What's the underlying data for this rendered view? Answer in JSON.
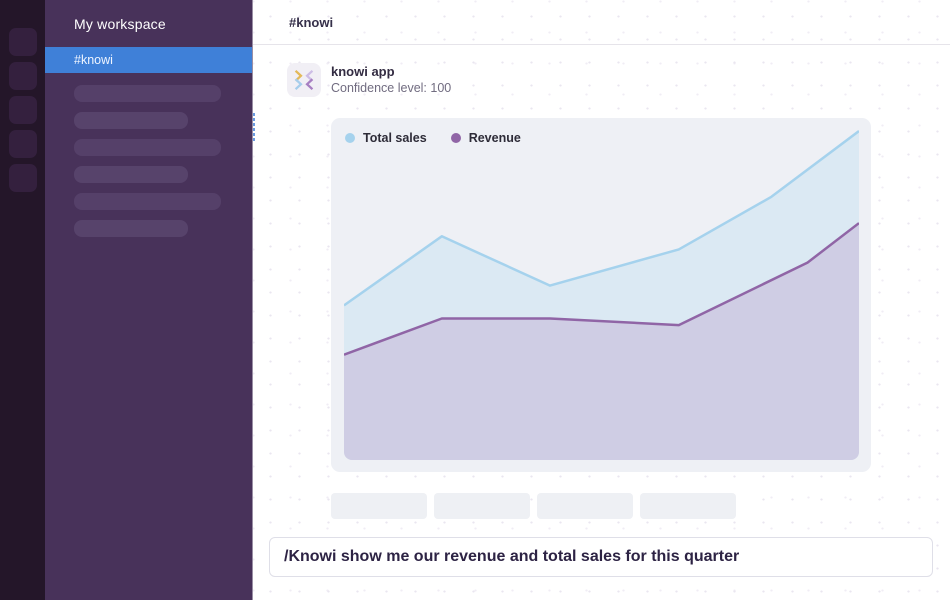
{
  "colors": {
    "accent_blue": "#3f80d8",
    "sidebar_purple": "#48325a",
    "rail_purple": "#241629",
    "total_sales_line": "#a5d2ed",
    "total_sales_fill": "#dbe9f3",
    "revenue_line": "#9065a6",
    "revenue_fill": "#cfcde4"
  },
  "sidebar": {
    "workspace_name": "My workspace",
    "active_channel": {
      "label": "#knowi"
    }
  },
  "header": {
    "channel_name": "#knowi"
  },
  "message": {
    "author": "knowi app",
    "meta": "Confidence level: 100",
    "avatar_icon": "knowi-logo-icon"
  },
  "chart_data": {
    "type": "area",
    "title": "",
    "xlabel": "",
    "ylabel": "",
    "axes_visible": false,
    "grid": false,
    "legend_position": "top-left",
    "x_unit": "percent-of-plot-width",
    "ylim": [
      0,
      110
    ],
    "series": [
      {
        "name": "Total sales",
        "line_color": "#a5d2ed",
        "fill_color": "#dbe9f3",
        "points": [
          [
            0,
            47
          ],
          [
            19,
            68
          ],
          [
            40,
            53
          ],
          [
            65,
            64
          ],
          [
            83,
            80
          ],
          [
            100,
            100
          ]
        ]
      },
      {
        "name": "Revenue",
        "line_color": "#9065a6",
        "fill_color": "#cfcde4",
        "points": [
          [
            0,
            32
          ],
          [
            19,
            43
          ],
          [
            40,
            43
          ],
          [
            65,
            41
          ],
          [
            90,
            60
          ],
          [
            100,
            72
          ]
        ]
      }
    ]
  },
  "composer": {
    "value": "/Knowi show me our revenue and total sales for this quarter"
  }
}
